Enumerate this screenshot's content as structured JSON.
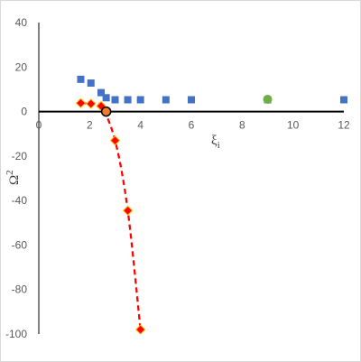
{
  "chart_data": {
    "type": "scatter",
    "title": "",
    "xlabel": "ξ",
    "xlabel_sub": "i",
    "ylabel": "Ω",
    "ylabel_sup": "2",
    "xlim": [
      0,
      12
    ],
    "ylim": [
      -100,
      40
    ],
    "x_ticks": [
      "0",
      "2",
      "4",
      "6",
      "8",
      "10",
      "12"
    ],
    "y_ticks": [
      "40",
      "20",
      "0",
      "-20",
      "-40",
      "-60",
      "-80",
      "-100"
    ],
    "grid": false,
    "legend": "none",
    "series": [
      {
        "marker": "square",
        "color": "#4472c4",
        "x": [
          1.65,
          2.05,
          2.45,
          2.65,
          3.0,
          3.5,
          4.0,
          5.0,
          6.0,
          9.0,
          12.0
        ],
        "y": [
          14.5,
          12.8,
          8.5,
          6.2,
          5.3,
          5.3,
          5.3,
          5.3,
          5.3,
          5.3,
          5.3
        ]
      },
      {
        "marker": "diamond",
        "color": "#ff0000",
        "line": "dashed",
        "x": [
          1.65,
          2.05,
          2.45,
          3.0,
          3.5,
          4.0
        ],
        "y": [
          3.8,
          3.5,
          2.5,
          -13.0,
          -44.5,
          -98.0
        ]
      },
      {
        "marker": "circle",
        "color": "#70ad47",
        "x": [
          9.0
        ],
        "y": [
          5.5
        ]
      },
      {
        "marker": "circle",
        "color": "#ed7d31",
        "x": [
          2.65
        ],
        "y": [
          0
        ]
      }
    ]
  }
}
